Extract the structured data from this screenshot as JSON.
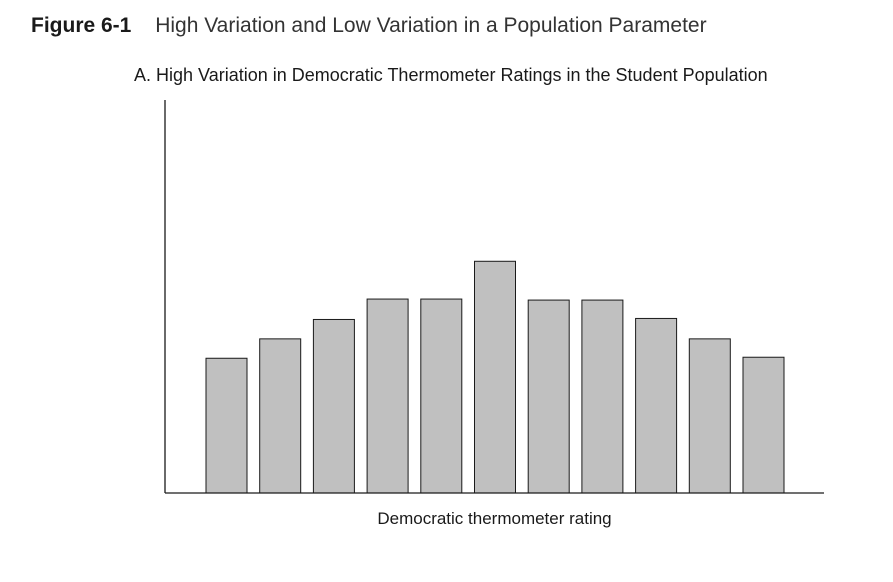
{
  "figure": {
    "label": "Figure 6-1",
    "title": "High Variation and Low Variation in a Population Parameter"
  },
  "chart_data": {
    "type": "bar",
    "title": "A. High Variation in Democratic Thermometer Ratings in the Student Population",
    "xlabel": "Democratic thermometer rating",
    "ylabel": "",
    "categories": [
      "",
      "",
      "",
      "",
      "",
      "",
      "",
      "",
      "",
      "",
      ""
    ],
    "values": [
      132,
      151,
      170,
      190,
      190,
      227,
      189,
      189,
      171,
      151,
      133
    ],
    "ylim": [
      0,
      385
    ],
    "grid": false,
    "bar_color": "#c0c0c0",
    "bar_stroke": "#1a1a1a",
    "axis_color": "#1a1a1a"
  }
}
